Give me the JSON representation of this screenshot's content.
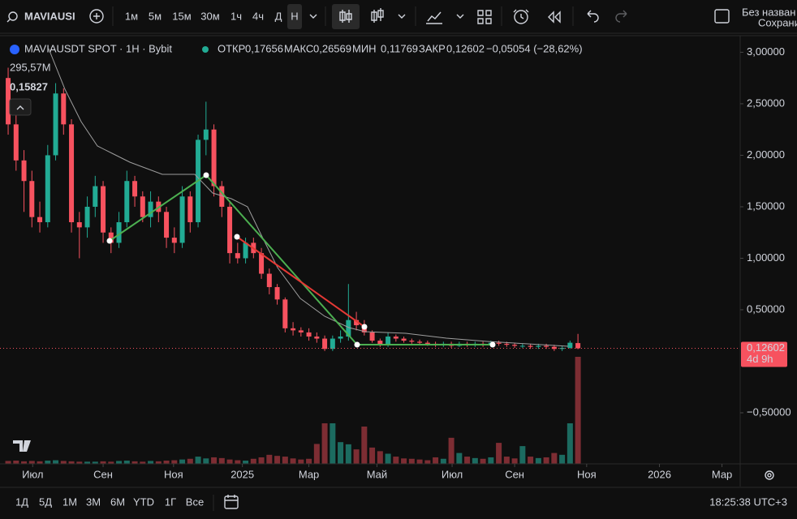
{
  "toolbar": {
    "symbol": "MAVIAUSI",
    "intervals": [
      "1м",
      "5м",
      "15м",
      "30м",
      "1ч",
      "4ч",
      "Д",
      "Н"
    ],
    "active_interval": 7,
    "layout_name": "Без назван",
    "save_label": "Сохранит"
  },
  "legend": {
    "title": "MAVIAUSDT SPOT · 1H · Bybit",
    "open_label": "ОТКР",
    "open": "0,17656",
    "high_label": "МАКС",
    "high": "0,26569",
    "low_label": "МИН",
    "low": "0,11769",
    "close_label": "ЗАКР",
    "close": "0,12602",
    "change": "−0,05054 (−28,62%)",
    "volume": "295,57M",
    "indicator": "0,15827"
  },
  "price_tag": {
    "price": "0,12602",
    "countdown": "4d 9h"
  },
  "bottom": {
    "ranges": [
      "1Д",
      "5Д",
      "1М",
      "3М",
      "6М",
      "YTD",
      "1Г",
      "Все"
    ],
    "clock": "18:25:38 UTC+3"
  },
  "chart_data": {
    "type": "candlestick",
    "open": [
      2.75,
      2.3,
      1.95,
      1.75,
      1.4,
      1.35,
      2.0,
      2.6,
      2.3,
      1.35,
      1.3,
      1.5,
      1.7,
      1.25,
      1.15,
      1.35,
      1.75,
      1.6,
      1.4,
      1.55,
      1.45,
      1.2,
      1.15,
      1.6,
      1.35,
      2.15,
      2.25,
      1.7,
      1.5,
      1.05,
      1.0,
      1.15,
      1.05,
      0.85,
      0.72,
      0.6,
      0.32,
      0.3,
      0.28,
      0.24,
      0.22,
      0.12,
      0.22,
      0.24,
      0.4,
      0.35,
      0.28,
      0.2,
      0.16,
      0.24,
      0.22,
      0.2,
      0.19,
      0.18,
      0.17,
      0.16,
      0.17,
      0.15,
      0.17,
      0.16,
      0.17,
      0.16,
      0.18,
      0.17,
      0.16,
      0.15,
      0.15,
      0.14,
      0.15,
      0.14,
      0.12,
      0.13,
      0.17656
    ],
    "high": [
      2.85,
      2.45,
      2.05,
      1.85,
      1.55,
      2.1,
      2.7,
      2.65,
      2.35,
      1.45,
      1.6,
      1.8,
      1.75,
      1.3,
      1.45,
      1.85,
      1.8,
      1.65,
      1.65,
      1.6,
      1.5,
      1.3,
      1.7,
      1.65,
      2.2,
      2.52,
      2.3,
      1.75,
      1.55,
      1.15,
      1.2,
      1.2,
      1.1,
      0.9,
      0.75,
      0.62,
      0.38,
      0.33,
      0.32,
      0.28,
      0.25,
      0.25,
      0.3,
      0.75,
      0.48,
      0.4,
      0.3,
      0.22,
      0.28,
      0.26,
      0.24,
      0.22,
      0.21,
      0.2,
      0.19,
      0.19,
      0.19,
      0.19,
      0.19,
      0.19,
      0.19,
      0.2,
      0.2,
      0.19,
      0.18,
      0.17,
      0.17,
      0.17,
      0.17,
      0.16,
      0.15,
      0.2,
      0.26569
    ],
    "low": [
      2.2,
      1.85,
      1.45,
      1.3,
      1.25,
      1.3,
      1.95,
      2.2,
      1.25,
      1.0,
      1.2,
      1.4,
      1.15,
      1.05,
      1.1,
      1.3,
      1.5,
      1.35,
      1.3,
      1.35,
      1.1,
      1.05,
      1.1,
      1.25,
      1.3,
      2.0,
      1.6,
      1.4,
      0.95,
      0.95,
      0.95,
      1.0,
      0.8,
      0.65,
      0.55,
      0.28,
      0.25,
      0.24,
      0.2,
      0.18,
      0.1,
      0.1,
      0.18,
      0.2,
      0.3,
      0.25,
      0.18,
      0.14,
      0.14,
      0.19,
      0.18,
      0.17,
      0.16,
      0.15,
      0.14,
      0.14,
      0.13,
      0.14,
      0.14,
      0.14,
      0.14,
      0.14,
      0.15,
      0.14,
      0.13,
      0.13,
      0.12,
      0.12,
      0.12,
      0.1,
      0.1,
      0.12,
      0.11769
    ],
    "close": [
      2.3,
      1.95,
      1.75,
      1.4,
      1.35,
      2.0,
      2.6,
      2.3,
      1.35,
      1.3,
      1.5,
      1.7,
      1.25,
      1.15,
      1.35,
      1.75,
      1.6,
      1.4,
      1.55,
      1.45,
      1.2,
      1.15,
      1.6,
      1.35,
      2.15,
      2.25,
      1.7,
      1.5,
      1.05,
      1.0,
      1.15,
      1.05,
      0.85,
      0.72,
      0.6,
      0.32,
      0.3,
      0.28,
      0.24,
      0.22,
      0.12,
      0.22,
      0.24,
      0.4,
      0.35,
      0.28,
      0.2,
      0.16,
      0.24,
      0.22,
      0.2,
      0.19,
      0.18,
      0.17,
      0.16,
      0.17,
      0.15,
      0.17,
      0.16,
      0.17,
      0.16,
      0.18,
      0.17,
      0.16,
      0.15,
      0.15,
      0.14,
      0.15,
      0.14,
      0.12,
      0.13,
      0.18,
      0.12602
    ],
    "volume": [
      8,
      9,
      7,
      8,
      7,
      9,
      10,
      8,
      7,
      6,
      6,
      6,
      7,
      6,
      8,
      9,
      7,
      6,
      8,
      7,
      9,
      10,
      12,
      14,
      20,
      15,
      18,
      16,
      12,
      10,
      9,
      14,
      18,
      25,
      22,
      20,
      15,
      12,
      14,
      55,
      112,
      112,
      60,
      54,
      40,
      103,
      45,
      35,
      28,
      20,
      15,
      14,
      12,
      10,
      18,
      14,
      72,
      30,
      20,
      16,
      14,
      18,
      58,
      20,
      15,
      49,
      20,
      16,
      18,
      30,
      25,
      112,
      295.57
    ],
    "up_color": "#22ab94",
    "down_color": "#f7525f",
    "up_volume_color": "#1c6b60",
    "down_volume_color": "#7d2d33",
    "ylim": [
      -0.996,
      3.161
    ],
    "yticks": [
      {
        "value": 3,
        "label": "3,00000"
      },
      {
        "value": 2.5,
        "label": "2,50000"
      },
      {
        "value": 2,
        "label": "2,00000"
      },
      {
        "value": 1.5,
        "label": "1,50000"
      },
      {
        "value": 1,
        "label": "1,00000"
      },
      {
        "value": 0.5,
        "label": "0,50000"
      },
      {
        "value": -0.5,
        "label": "−0,50000"
      }
    ],
    "xlim": [
      -1.03,
      92.5
    ],
    "xticks": [
      {
        "value": 3.1,
        "label": "Июл"
      },
      {
        "value": 12,
        "label": "Сен"
      },
      {
        "value": 20.9,
        "label": "Ноя"
      },
      {
        "value": 29.6,
        "label": "2025"
      },
      {
        "value": 38,
        "label": "Мар"
      },
      {
        "value": 46.6,
        "label": "Май"
      },
      {
        "value": 56.1,
        "label": "Июл"
      },
      {
        "value": 64,
        "label": "Сен"
      },
      {
        "value": 73.1,
        "label": "Ноя"
      },
      {
        "value": 82.3,
        "label": "2026"
      },
      {
        "value": 90.2,
        "label": "Мар"
      }
    ]
  }
}
